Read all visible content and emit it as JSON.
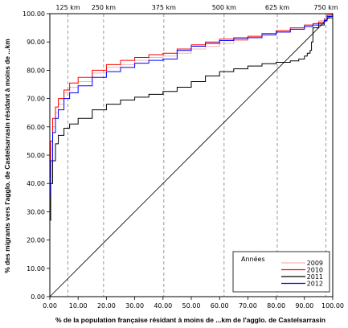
{
  "chart_data": {
    "type": "line",
    "xlabel": "% de la population française résidant à moins de ...km de l'agglo. de Castelsarrasin",
    "ylabel": "% des migrants vers l'agglo. de Castelsarrasin résidant à moins de ...km",
    "xlim": [
      0,
      100
    ],
    "ylim": [
      0,
      100
    ],
    "x_ticks": [
      "0.00",
      "10.00",
      "20.00",
      "30.00",
      "40.00",
      "50.00",
      "60.00",
      "70.00",
      "80.00",
      "90.00",
      "100.00"
    ],
    "y_ticks": [
      "0.00",
      "10.00",
      "20.00",
      "30.00",
      "40.00",
      "50.00",
      "60.00",
      "70.00",
      "80.00",
      "90.00",
      "100.00"
    ],
    "distance_markers": [
      {
        "label": "125 km",
        "x": 6.4
      },
      {
        "label": "250 km",
        "x": 19.0
      },
      {
        "label": "375 km",
        "x": 40.3
      },
      {
        "label": "500 km",
        "x": 61.6
      },
      {
        "label": "625 km",
        "x": 80.4
      },
      {
        "label": "750 km",
        "x": 97.6
      }
    ],
    "grid": false,
    "legend": {
      "title": "Années",
      "position": "bottom-right"
    },
    "reference_line": {
      "x": [
        0,
        100
      ],
      "y": [
        0,
        100
      ],
      "color": "#000000"
    },
    "series": [
      {
        "name": "2009",
        "color": "#f4b6b6",
        "x": [
          0,
          0.3,
          1,
          2,
          3,
          5,
          7,
          10,
          15,
          20,
          25,
          30,
          35,
          40,
          45,
          50,
          55,
          60,
          65,
          70,
          75,
          80,
          85,
          90,
          93,
          95,
          97,
          98,
          100
        ],
        "y": [
          40,
          52,
          60,
          65,
          68,
          72,
          74,
          76,
          79,
          81,
          82,
          83.5,
          84.5,
          85,
          86,
          87.5,
          88.5,
          89.5,
          90.5,
          91.5,
          92.5,
          93.5,
          94.5,
          95.5,
          96.5,
          97.5,
          98.5,
          99.3,
          100
        ]
      },
      {
        "name": "2010",
        "color": "#ff0000",
        "x": [
          0,
          0.3,
          1,
          2,
          3,
          5,
          7,
          10,
          15,
          20,
          25,
          30,
          35,
          40,
          45,
          50,
          55,
          60,
          65,
          70,
          75,
          80,
          85,
          90,
          93,
          95,
          97,
          98,
          100
        ],
        "y": [
          42,
          55,
          63,
          67,
          70,
          73,
          75.5,
          77.5,
          80,
          82,
          83.5,
          84.5,
          85.5,
          86,
          87.5,
          89,
          90,
          91,
          91.5,
          92,
          93,
          94,
          95,
          96,
          96.5,
          97,
          98,
          99.5,
          100
        ]
      },
      {
        "name": "2011",
        "color": "#000000",
        "x": [
          0,
          0.3,
          1,
          2,
          3,
          5,
          7,
          10,
          15,
          20,
          25,
          30,
          35,
          40,
          45,
          50,
          55,
          60,
          65,
          70,
          75,
          80,
          85,
          88,
          90,
          91,
          92,
          92.5,
          93,
          95,
          97,
          98,
          100
        ],
        "y": [
          27,
          40,
          48,
          54,
          57,
          59.5,
          61,
          63,
          66,
          68,
          69.5,
          70.5,
          71.5,
          72.5,
          74,
          76,
          78,
          79.5,
          80.5,
          81.5,
          82.3,
          82.8,
          83.3,
          84,
          85,
          86,
          87,
          90,
          95,
          96,
          97.5,
          98.5,
          100
        ]
      },
      {
        "name": "2012",
        "color": "#0000ff",
        "x": [
          0,
          0.3,
          1,
          2,
          3,
          5,
          7,
          10,
          15,
          20,
          25,
          30,
          35,
          40,
          45,
          50,
          55,
          60,
          65,
          70,
          75,
          80,
          85,
          90,
          93,
          95,
          97,
          98,
          100
        ],
        "y": [
          36,
          48,
          58,
          63,
          66,
          70,
          72,
          74.5,
          77.5,
          79.5,
          81,
          82.5,
          83.5,
          84,
          87,
          88.5,
          89.5,
          90.5,
          91,
          91.5,
          92.5,
          93.5,
          94.5,
          95.5,
          96,
          96.5,
          97.5,
          99,
          100
        ]
      }
    ]
  }
}
